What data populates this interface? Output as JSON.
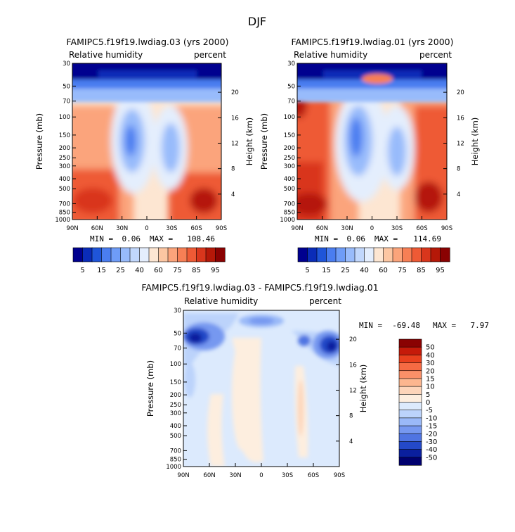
{
  "figure": {
    "title": "DJF"
  },
  "chart_data": [
    {
      "type": "heatmap",
      "title": "FAMIPC5.f19f19.lwdiag.03 (yrs 2000)",
      "left_label": "Relative humidity",
      "right_label": "percent",
      "xlabel": "",
      "ylabel": "Pressure (mb)",
      "y2label": "Height (km)",
      "x_ticks": [
        "90N",
        "60N",
        "30N",
        "0",
        "30S",
        "60S",
        "90S"
      ],
      "y_ticks": [
        "30",
        "50",
        "70",
        "100",
        "150",
        "200",
        "250",
        "300",
        "400",
        "500",
        "700",
        "850",
        "1000"
      ],
      "y2_ticks": [
        "20",
        "16",
        "12",
        "8",
        "4"
      ],
      "min_label": "MIN =",
      "min_value": "0.06",
      "max_label": "MAX =",
      "max_value": "108.46",
      "colorbar_levels": [
        "5",
        "15",
        "25",
        "40",
        "60",
        "75",
        "85",
        "95"
      ],
      "colors": [
        "#00008f",
        "#0a2cb8",
        "#1f55d9",
        "#4a7df0",
        "#6e9cf7",
        "#98bbfb",
        "#c1d7fc",
        "#e4eefd",
        "#fde6d2",
        "#fcc6a2",
        "#fba47b",
        "#f77f55",
        "#ee5a35",
        "#d9361c",
        "#b51808",
        "#8a0202"
      ]
    },
    {
      "type": "heatmap",
      "title": "FAMIPC5.f19f19.lwdiag.01 (yrs 2000)",
      "left_label": "Relative humidity",
      "right_label": "percent",
      "xlabel": "",
      "ylabel": "Pressure (mb)",
      "y2label": "Height (km)",
      "x_ticks": [
        "90N",
        "60N",
        "30N",
        "0",
        "30S",
        "60S",
        "90S"
      ],
      "y_ticks": [
        "30",
        "50",
        "70",
        "100",
        "150",
        "200",
        "250",
        "300",
        "400",
        "500",
        "700",
        "850",
        "1000"
      ],
      "y2_ticks": [
        "20",
        "16",
        "12",
        "8",
        "4"
      ],
      "min_label": "MIN =",
      "min_value": "0.06",
      "max_label": "MAX =",
      "max_value": "114.69",
      "colorbar_levels": [
        "5",
        "15",
        "25",
        "40",
        "60",
        "75",
        "85",
        "95"
      ]
    },
    {
      "type": "heatmap",
      "title": "FAMIPC5.f19f19.lwdiag.03 - FAMIPC5.f19f19.lwdiag.01",
      "left_label": "Relative humidity",
      "right_label": "percent",
      "xlabel": "",
      "ylabel": "Pressure (mb)",
      "y2label": "Height (km)",
      "x_ticks": [
        "90N",
        "60N",
        "30N",
        "0",
        "30S",
        "60S",
        "90S"
      ],
      "y_ticks": [
        "30",
        "50",
        "70",
        "100",
        "150",
        "200",
        "250",
        "300",
        "400",
        "500",
        "700",
        "850",
        "1000"
      ],
      "y2_ticks": [
        "20",
        "16",
        "12",
        "8",
        "4"
      ],
      "min_label": "MIN =",
      "min_value": "-69.48",
      "max_label": "MAX =",
      "max_value": "7.97",
      "colorbar_levels": [
        "50",
        "40",
        "30",
        "20",
        "15",
        "10",
        "5",
        "0",
        "-5",
        "-10",
        "-15",
        "-20",
        "-30",
        "-40",
        "-50"
      ],
      "colors": [
        "#8a0202",
        "#c51a0a",
        "#e8401e",
        "#f56a43",
        "#fa9068",
        "#fcb68f",
        "#fdd5ba",
        "#fdeedf",
        "#dceafd",
        "#bcd3fb",
        "#9ab9f8",
        "#7698f0",
        "#4f74e2",
        "#2449c8",
        "#0a1f9e",
        "#00006e"
      ]
    }
  ]
}
